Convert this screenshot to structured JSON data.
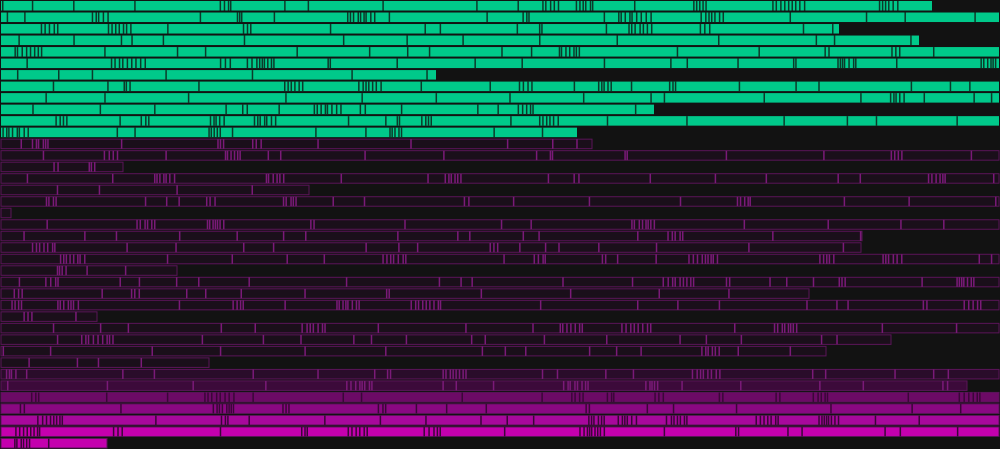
{
  "chart_data": {
    "type": "timeline-bars",
    "xlim": [
      0,
      1000
    ],
    "colors": {
      "background": "#121212",
      "green": "#00c98a",
      "green_divider": "#0b3a2a",
      "magenta_levels": [
        "#1a0f1a",
        "#2a0c2a",
        "#3c0a3a",
        "#6c0a66",
        "#8a0882",
        "#a8089c",
        "#c400ae"
      ],
      "magenta_border": "#5a1458"
    },
    "rows": [
      {
        "group": "green",
        "end": 933
      },
      {
        "group": "green",
        "end": 1000
      },
      {
        "group": "green",
        "end": 840
      },
      {
        "group": "green",
        "end": 920
      },
      {
        "group": "green",
        "end": 1000
      },
      {
        "group": "green",
        "end": 1000
      },
      {
        "group": "green",
        "end": 437
      },
      {
        "group": "green",
        "end": 1000
      },
      {
        "group": "green",
        "end": 1000
      },
      {
        "group": "green",
        "end": 655
      },
      {
        "group": "green",
        "end": 1000
      },
      {
        "group": "green",
        "end": 578
      },
      {
        "group": "magenta",
        "end": 593,
        "level": 0
      },
      {
        "group": "magenta",
        "end": 1000,
        "level": 0
      },
      {
        "group": "magenta",
        "end": 124,
        "level": 0
      },
      {
        "group": "magenta",
        "end": 1000,
        "level": 0
      },
      {
        "group": "magenta",
        "end": 310,
        "level": 0
      },
      {
        "group": "magenta",
        "end": 1000,
        "level": 0
      },
      {
        "group": "magenta",
        "end": 12,
        "level": 0
      },
      {
        "group": "magenta",
        "end": 1000,
        "level": 0
      },
      {
        "group": "magenta",
        "end": 863,
        "level": 0
      },
      {
        "group": "magenta",
        "end": 862,
        "level": 0
      },
      {
        "group": "magenta",
        "end": 1000,
        "level": 0
      },
      {
        "group": "magenta",
        "end": 178,
        "level": 0
      },
      {
        "group": "magenta",
        "end": 1000,
        "level": 0
      },
      {
        "group": "magenta",
        "end": 810,
        "level": 0
      },
      {
        "group": "magenta",
        "end": 1000,
        "level": 0
      },
      {
        "group": "magenta",
        "end": 98,
        "level": 0
      },
      {
        "group": "magenta",
        "end": 1000,
        "level": 0
      },
      {
        "group": "magenta",
        "end": 892,
        "level": 0
      },
      {
        "group": "magenta",
        "end": 827,
        "level": 0
      },
      {
        "group": "magenta",
        "end": 210,
        "level": 0
      },
      {
        "group": "magenta",
        "end": 1000,
        "level": 1
      },
      {
        "group": "magenta",
        "end": 968,
        "level": 2
      },
      {
        "group": "magenta",
        "end": 1000,
        "level": 3
      },
      {
        "group": "magenta",
        "end": 1000,
        "level": 4
      },
      {
        "group": "magenta",
        "end": 1000,
        "level": 5
      },
      {
        "group": "magenta",
        "end": 1000,
        "level": 6
      },
      {
        "group": "magenta",
        "end": 108,
        "level": 6
      }
    ]
  }
}
